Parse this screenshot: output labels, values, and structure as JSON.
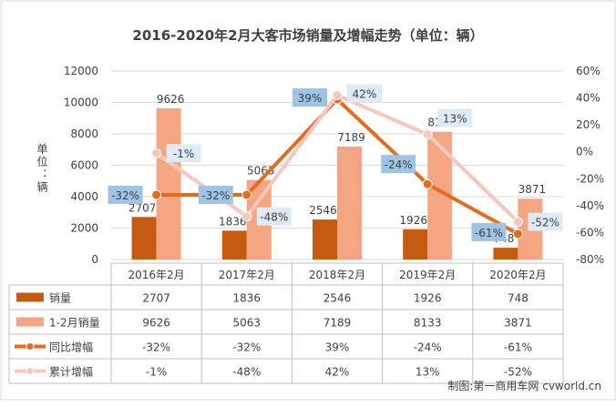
{
  "chart_data": {
    "type": "bar",
    "title": "2016-2020年2月大客市场销量及增幅走势（单位：辆）",
    "ylabel": "单位：辆",
    "categories": [
      "2016年2月",
      "2017年2月",
      "2018年2月",
      "2019年2月",
      "2020年2月"
    ],
    "ylim": [
      0,
      12000
    ],
    "yticks": [
      "0",
      "2000",
      "4000",
      "6000",
      "8000",
      "10000",
      "12000"
    ],
    "y2lim": [
      -80,
      60
    ],
    "y2ticks": [
      "-80%",
      "-60%",
      "-40%",
      "-20%",
      "0%",
      "20%",
      "40%",
      "60%"
    ],
    "grid": true,
    "bar_series": [
      {
        "name": "销量",
        "color": "#c55a11",
        "values": [
          2707,
          1836,
          2546,
          1926,
          748
        ],
        "labels": [
          "2707",
          "1836",
          "2546",
          "1926",
          "748"
        ]
      },
      {
        "name": "1-2月销量",
        "color": "#f4a582",
        "values": [
          9626,
          5063,
          7189,
          8133,
          3871
        ],
        "labels": [
          "9626",
          "5063",
          "7189",
          "8133",
          "3871"
        ]
      }
    ],
    "line_series": [
      {
        "name": "同比增幅",
        "color": "#e46c1f",
        "values": [
          -32,
          -32,
          39,
          -24,
          -61
        ],
        "labels": [
          "-32%",
          "-32%",
          "39%",
          "-24%",
          "-61%"
        ]
      },
      {
        "name": "累计增幅",
        "color": "#f7c7be",
        "values": [
          -1,
          -48,
          42,
          13,
          -52
        ],
        "labels": [
          "-1%",
          "-48%",
          "42%",
          "13%",
          "-52%"
        ]
      }
    ],
    "data_table": true
  },
  "watermark": "制图:第一商用车网 cvworld.cn"
}
